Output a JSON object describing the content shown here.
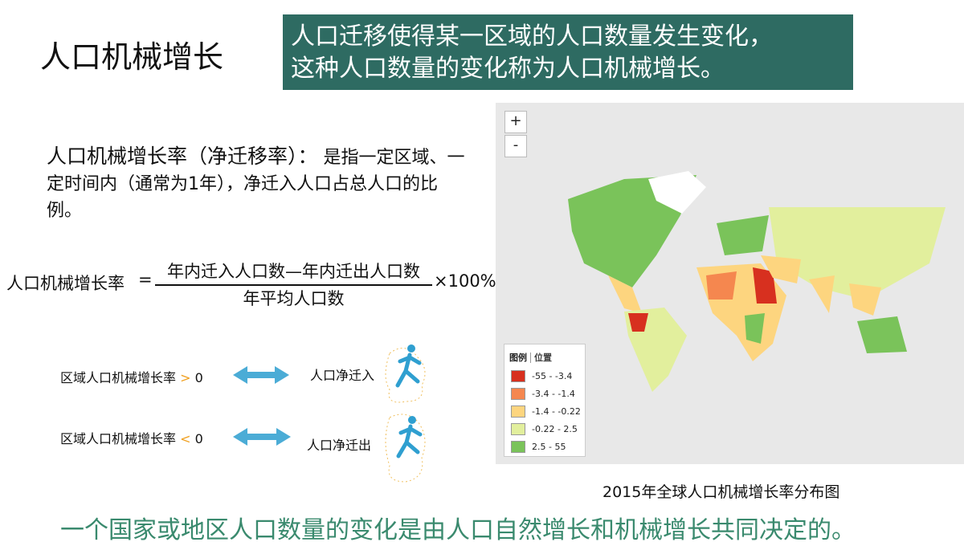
{
  "header": {
    "title": "人口机械增长",
    "banner": [
      "人口迁移使得某一区域的人口数量发生变化，",
      "这种人口数量的变化称为人口机械增长。"
    ]
  },
  "definition": {
    "term": "人口机械增长率（净迁移率）：",
    "text": "是指一定区域、一定时间内（通常为1年），净迁入人口占总人口的比例。"
  },
  "formula": {
    "lhs": "人口机械增长率",
    "equals": "=",
    "numerator": "年内迁入人口数—年内迁出人口数",
    "denominator": "年平均人口数",
    "factor": "×100%"
  },
  "rules": [
    {
      "label": "区域人口机械增长率",
      "sign": ">",
      "zero": "0",
      "result": "人口净迁入"
    },
    {
      "label": "区域人口机械增长率",
      "sign": "<",
      "zero": "0",
      "result": "人口净迁出"
    }
  ],
  "map": {
    "zoom_in": "+",
    "zoom_out": "-",
    "legend_title": "图例",
    "legend_tab": "位置",
    "legend": [
      {
        "label": "-55 - -3.4",
        "color": "#d7301f"
      },
      {
        "label": "-3.4 - -1.4",
        "color": "#f5874f"
      },
      {
        "label": "-1.4 - -0.22",
        "color": "#fdd57f"
      },
      {
        "label": "-0.22 - 2.5",
        "color": "#e2ef9d"
      },
      {
        "label": "2.5 - 55",
        "color": "#7ac35a"
      }
    ],
    "caption": "2015年全球人口机械增长率分布图"
  },
  "conclusion": "一个国家或地区人口数量的变化是由人口自然增长和机械增长共同决定的。"
}
